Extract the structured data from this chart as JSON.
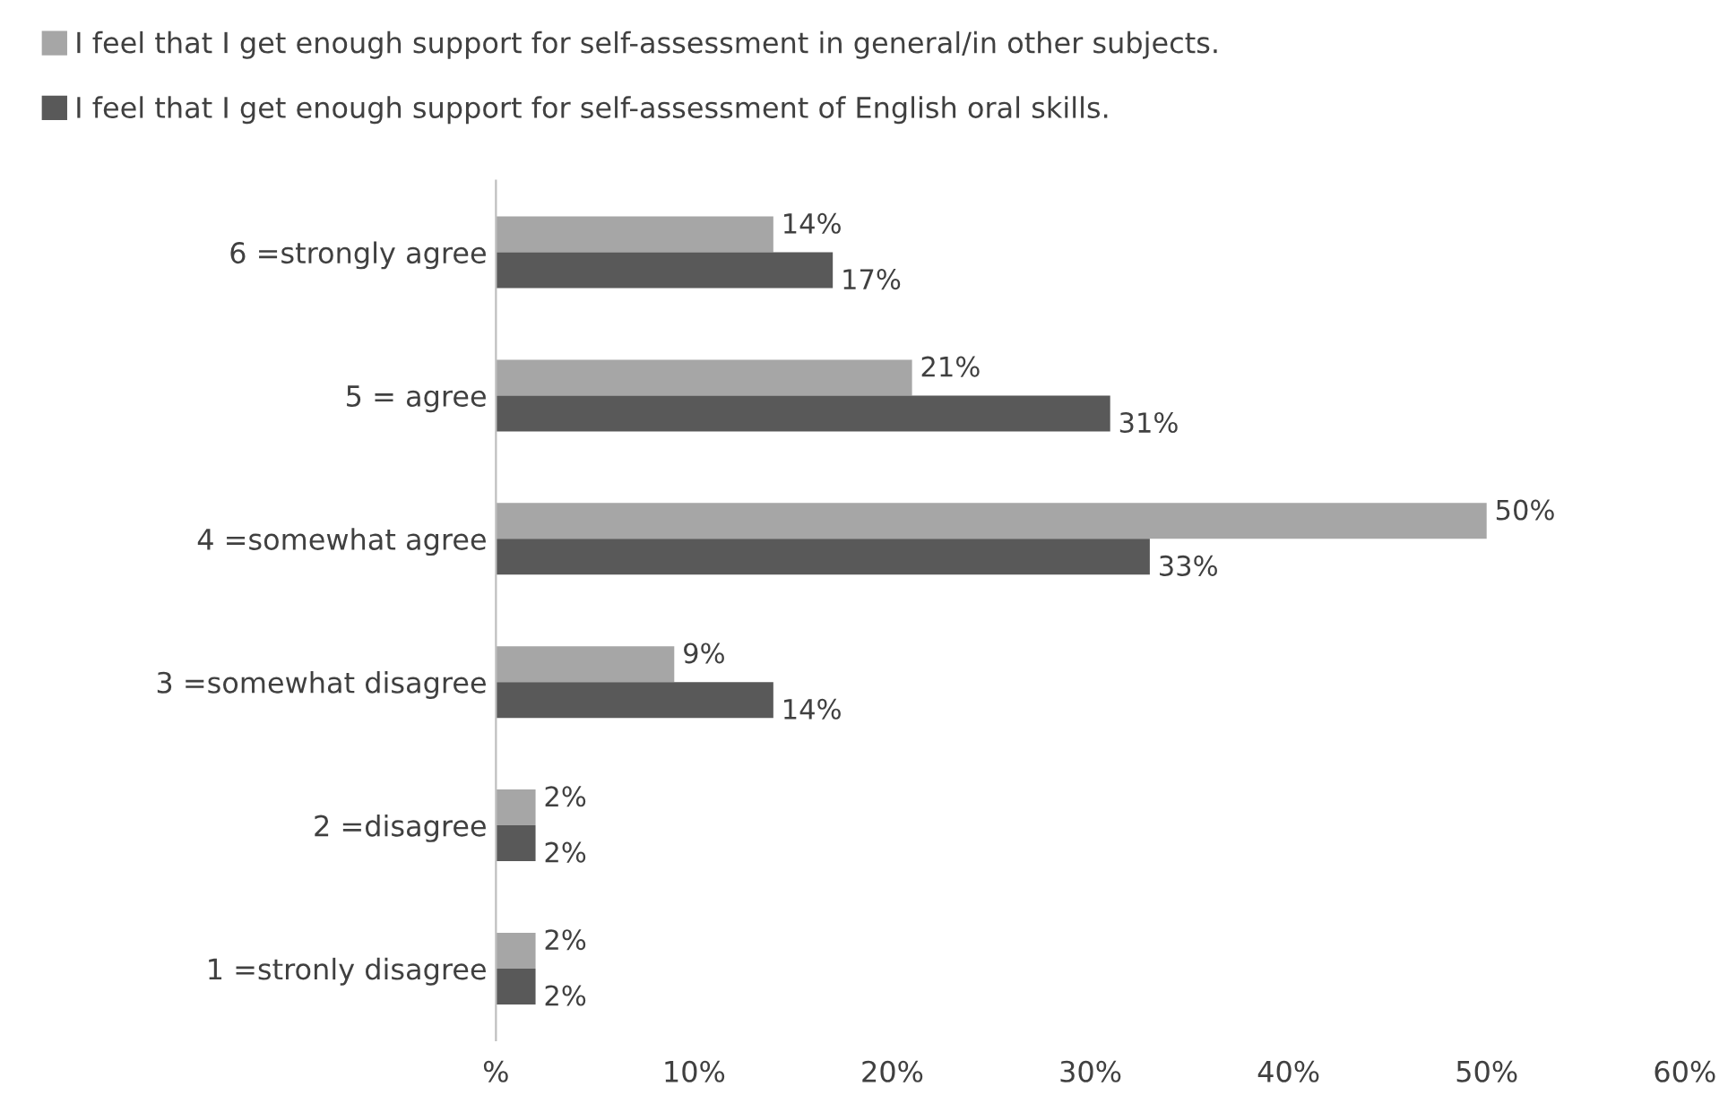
{
  "chart_data": {
    "type": "bar",
    "orientation": "horizontal",
    "categories": [
      "6 =strongly agree",
      "5 = agree",
      "4 =somewhat agree",
      "3 =somewhat disagree",
      "2 =disagree",
      "1 =stronly disagree"
    ],
    "series": [
      {
        "name": "I feel that I get enough support for self-assessment in general/in other subjects.",
        "color": "#a6a6a6",
        "values": [
          14,
          21,
          50,
          9,
          2,
          2
        ],
        "value_labels": [
          "14%",
          "21%",
          "50%",
          "9%",
          "2%",
          "2%"
        ]
      },
      {
        "name": "I feel that I get enough support for self-assessment of English oral skills.",
        "color": "#595959",
        "values": [
          17,
          31,
          33,
          14,
          2,
          2
        ],
        "value_labels": [
          "17%",
          "31%",
          "33%",
          "14%",
          "2%",
          "2%"
        ]
      }
    ],
    "xlim": [
      0,
      60
    ],
    "xticks": [
      {
        "value": 0,
        "label": "%"
      },
      {
        "value": 10,
        "label": "10%"
      },
      {
        "value": 20,
        "label": "20%"
      },
      {
        "value": 30,
        "label": "30%"
      },
      {
        "value": 40,
        "label": "40%"
      },
      {
        "value": 50,
        "label": "50%"
      },
      {
        "value": 60,
        "label": "60%"
      }
    ],
    "grid": false,
    "legend": "top left"
  }
}
